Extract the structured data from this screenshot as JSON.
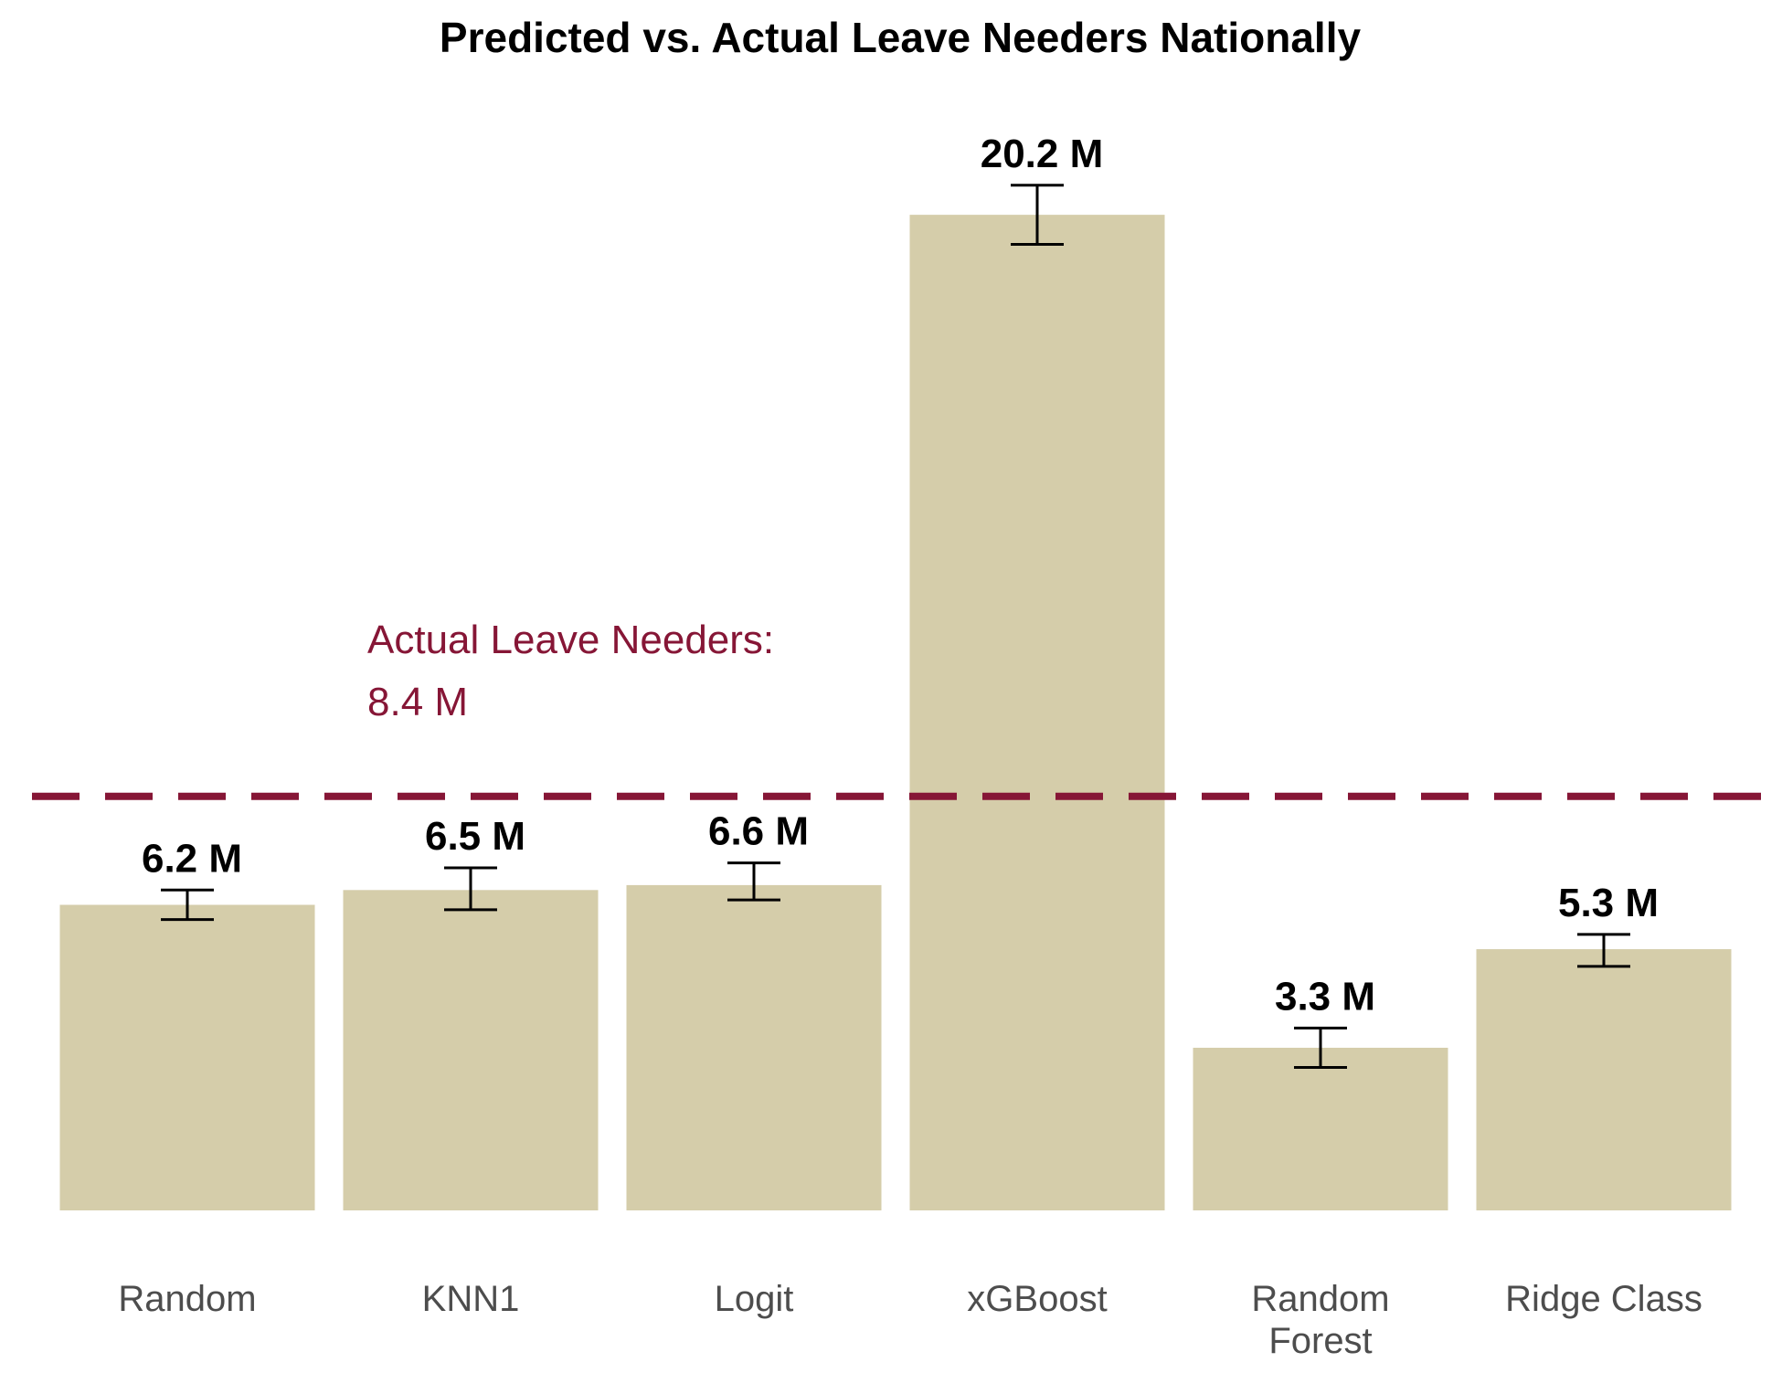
{
  "chart_data": {
    "type": "bar",
    "title": "Predicted vs. Actual Leave Needers Nationally",
    "xlabel": "",
    "ylabel": "",
    "unit": "M",
    "categories": [
      "Random",
      "KNN1",
      "Logit",
      "xGBoost",
      "Random Forest",
      "Ridge Class"
    ],
    "category_lines": [
      [
        "Random"
      ],
      [
        "KNN1"
      ],
      [
        "Logit"
      ],
      [
        "xGBoost"
      ],
      [
        "Random",
        "Forest"
      ],
      [
        "Ridge Class"
      ]
    ],
    "values": [
      6.2,
      6.5,
      6.6,
      20.2,
      3.3,
      5.3
    ],
    "value_labels": [
      "6.2 M",
      "6.5 M",
      "6.6 M",
      "20.2 M",
      "3.3 M",
      "5.3 M"
    ],
    "error_bars": [
      {
        "low": 5.9,
        "high": 6.5
      },
      {
        "low": 6.1,
        "high": 6.95
      },
      {
        "low": 6.3,
        "high": 7.05
      },
      {
        "low": 19.6,
        "high": 20.8
      },
      {
        "low": 2.9,
        "high": 3.7
      },
      {
        "low": 4.95,
        "high": 5.6
      }
    ],
    "reference_line": {
      "value": 8.4,
      "label_lines": [
        "Actual Leave Needers:",
        "8.4 M"
      ]
    },
    "ylim": [
      0,
      21.5
    ],
    "grid": false,
    "legend": "none",
    "colors": {
      "bar": "#d5cdaa",
      "reference": "#861636",
      "error_bar": "#000000",
      "tick_text": "#4d4d4d"
    }
  }
}
